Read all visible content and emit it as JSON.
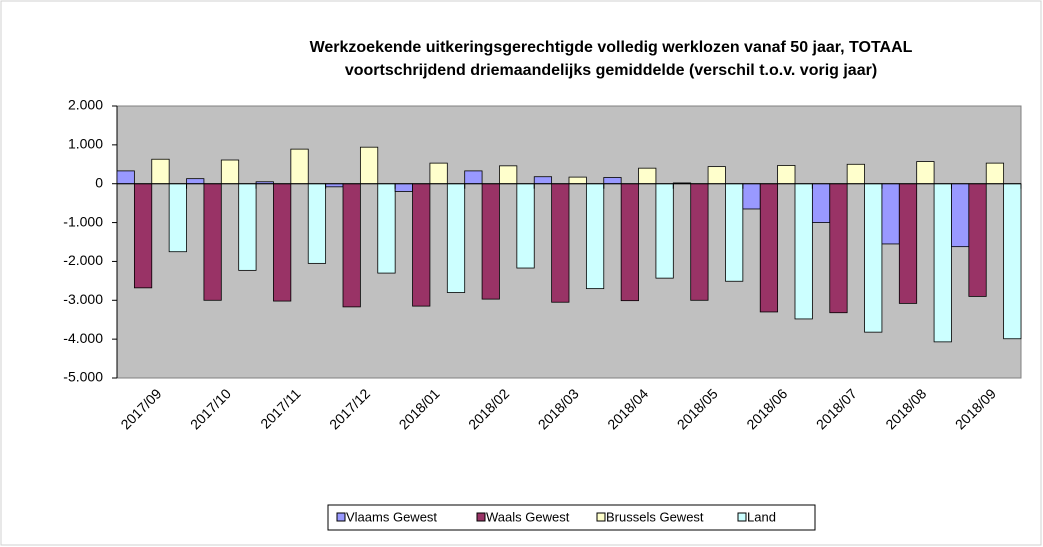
{
  "chart_data": {
    "type": "bar",
    "title": [
      "Werkzoekende uitkeringsgerechtigde volledig werklozen vanaf 50 jaar, TOTAAL",
      "voortschrijdend driemaandelijks gemiddelde (verschil t.o.v. vorig jaar)"
    ],
    "categories": [
      "2017/09",
      "2017/10",
      "2017/11",
      "2017/12",
      "2018/01",
      "2018/02",
      "2018/03",
      "2018/04",
      "2018/05",
      "2018/06",
      "2018/07",
      "2018/08",
      "2018/09"
    ],
    "series": [
      {
        "name": "Vlaams Gewest",
        "color": "#9999ff",
        "values": [
          330,
          130,
          50,
          -80,
          -200,
          330,
          180,
          160,
          20,
          -650,
          -1000,
          -1550,
          -1620
        ]
      },
      {
        "name": "Waals Gewest",
        "color": "#993366",
        "values": [
          -2680,
          -3000,
          -3020,
          -3170,
          -3150,
          -2970,
          -3050,
          -3010,
          -3000,
          -3300,
          -3320,
          -3080,
          -2900
        ]
      },
      {
        "name": "Brussels Gewest",
        "color": "#ffffcc",
        "values": [
          630,
          610,
          890,
          940,
          530,
          460,
          170,
          400,
          440,
          470,
          500,
          570,
          530
        ]
      },
      {
        "name": "Land",
        "color": "#ccffff",
        "values": [
          -1750,
          -2230,
          -2050,
          -2300,
          -2800,
          -2170,
          -2700,
          -2430,
          -2510,
          -3480,
          -3820,
          -4070,
          -3990
        ]
      }
    ],
    "ylim": [
      -5000,
      2000
    ],
    "yticks": [
      {
        "value": 2000,
        "label": "2.000"
      },
      {
        "value": 1000,
        "label": "1.000"
      },
      0,
      {
        "value": -1000,
        "label": "-1.000"
      },
      {
        "value": -2000,
        "label": "-2.000"
      },
      {
        "value": -3000,
        "label": "-3.000"
      },
      {
        "value": -4000,
        "label": "-4.000"
      },
      {
        "value": -5000,
        "label": "-5.000"
      }
    ],
    "plot_background": "#c0c0c0",
    "legend": "bottom"
  }
}
